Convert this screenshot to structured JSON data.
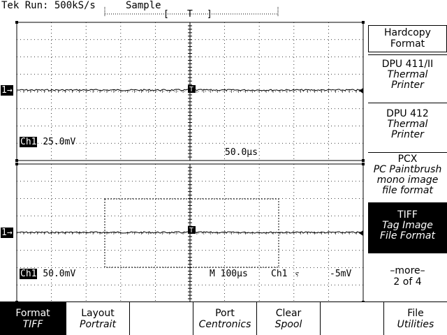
{
  "status": {
    "run": "Tek Run: 500kS/s",
    "mode": "Sample",
    "trigger_marker": "T"
  },
  "scope": {
    "ch_marker": "1→",
    "ch1_label": "Ch1",
    "upper_scale": "25.0mV",
    "upper_time": "50.0µs",
    "lower_scale": "50.0mV",
    "timebase": "M  100µs",
    "trig_source": "Ch1",
    "trig_slope": "ⲋ",
    "trig_level": "-5mV",
    "trigger_tag": "T"
  },
  "side_menu": {
    "title_line1": "Hardcopy",
    "title_line2": "Format",
    "items": [
      {
        "label": "DPU 411/II",
        "sub1": "Thermal",
        "sub2": "Printer"
      },
      {
        "label": "DPU 412",
        "sub1": "Thermal",
        "sub2": "Printer"
      },
      {
        "label": "PCX",
        "sub1": "PC Paintbrush",
        "sub2": "mono image",
        "sub3": "file format"
      },
      {
        "label": "TIFF",
        "sub1": "Tag Image",
        "sub2": "File Format"
      }
    ],
    "more_label": "–more–",
    "page_label": "2 of 4"
  },
  "bottom_menu": [
    {
      "label": "Format",
      "value": "TIFF"
    },
    {
      "label": "Layout",
      "value": "Portrait"
    },
    {
      "label": "",
      "value": ""
    },
    {
      "label": "Port",
      "value": "Centronics"
    },
    {
      "label": "Clear",
      "value": "Spool"
    },
    {
      "label": "",
      "value": ""
    },
    {
      "label": "File",
      "value": "Utilities"
    }
  ],
  "colors": {
    "foreground": "#000000",
    "background": "#ffffff"
  }
}
